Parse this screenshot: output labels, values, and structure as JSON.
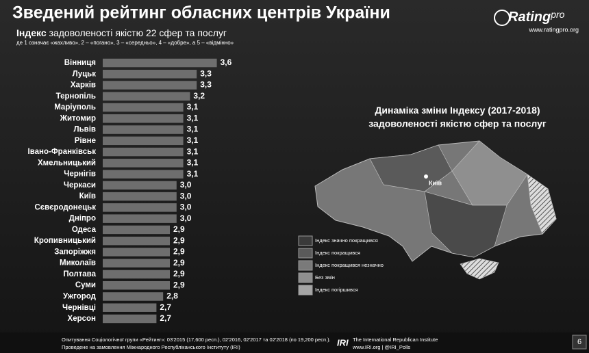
{
  "header": {
    "title": "Зведений рейтинг обласних центрів України",
    "logo": "Rating",
    "logo_suffix": "pro",
    "website": "www.ratingpro.org"
  },
  "chart_data": {
    "type": "bar",
    "orientation": "horizontal",
    "title_bold": "Індекс",
    "title": "задоволеності якістю 22 сфер та послуг",
    "subtitle": "де 1 означає «жахливо», 2 – «погано», 3 – «середньо», 4 – «добре», а 5 – «відмінно»",
    "categories": [
      "Вінниця",
      "Луцьк",
      "Харків",
      "Тернопіль",
      "Маріуполь",
      "Житомир",
      "Львів",
      "Рівне",
      "Івано-Франківськ",
      "Хмельницький",
      "Чернігів",
      "Черкаси",
      "Київ",
      "Сєвєродонецьк",
      "Дніпро",
      "Одеса",
      "Кропивницький",
      "Запоріжжя",
      "Миколаїв",
      "Полтава",
      "Суми",
      "Ужгород",
      "Чернівці",
      "Херсон"
    ],
    "values": [
      3.6,
      3.3,
      3.3,
      3.2,
      3.1,
      3.1,
      3.1,
      3.1,
      3.1,
      3.1,
      3.1,
      3.0,
      3.0,
      3.0,
      3.0,
      2.9,
      2.9,
      2.9,
      2.9,
      2.9,
      2.9,
      2.8,
      2.7,
      2.7
    ],
    "value_labels": [
      "3,6",
      "3,3",
      "3,3",
      "3,2",
      "3,1",
      "3,1",
      "3,1",
      "3,1",
      "3,1",
      "3,1",
      "3,1",
      "3,0",
      "3,0",
      "3,0",
      "3,0",
      "2,9",
      "2,9",
      "2,9",
      "2,9",
      "2,9",
      "2,9",
      "2,8",
      "2,7",
      "2,7"
    ],
    "color": "#6e6e6e",
    "xlim": [
      1.9,
      3.9
    ]
  },
  "map": {
    "title_bold": "Динаміка",
    "title": "зміни Індексу (2017-2018)",
    "title_line2": "задоволеності якістю сфер та послуг",
    "capital_label": "Київ",
    "legend": [
      {
        "label": "Індекс значно покращився",
        "color": "#3a3a3a"
      },
      {
        "label": "Індекс покращився",
        "color": "#5a5a5a"
      },
      {
        "label": "Індекс покращився незначно",
        "color": "#7a7a7a"
      },
      {
        "label": "Без змін",
        "color": "#8f8f8f"
      },
      {
        "label": "Індекс погіршився",
        "color": "#a5a5a5"
      }
    ]
  },
  "footer": {
    "line1": "Опитування Соціологічної групи «Рейтинг»: 03'2015 (17,600 респ.), 02'2016, 02'2017 та 02'2018 (по 19,200 респ.).",
    "line2": "Проведене на замовлення Міжнародного Республіканського Інституту (IRI)",
    "iri_logo": "IRI",
    "iri_name": "The International Republican Institute",
    "iri_web": "www.IRI.org | @IRI_Polls",
    "page": "6"
  }
}
